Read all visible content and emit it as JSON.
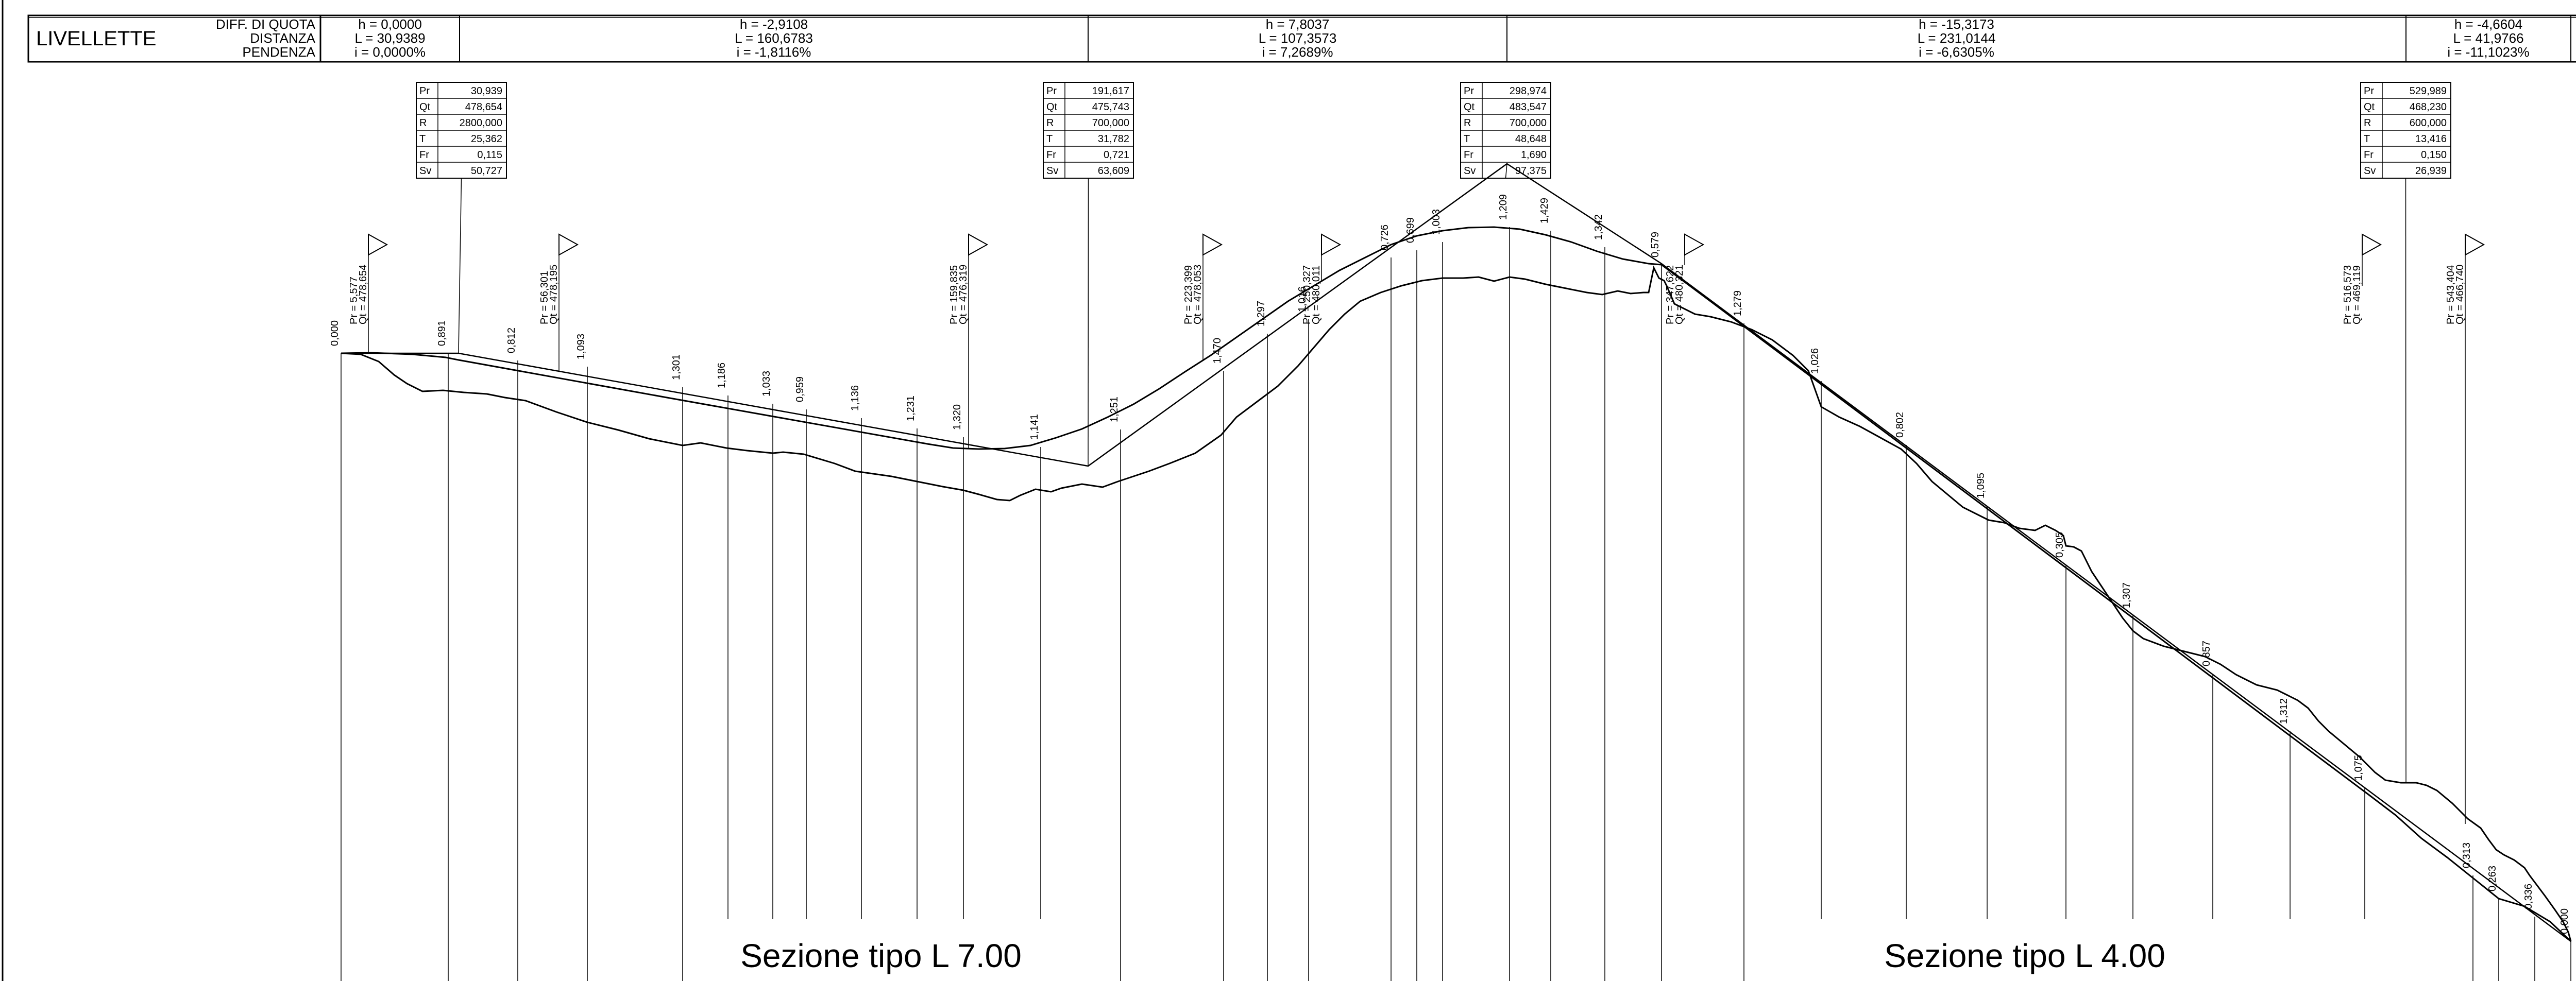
{
  "header": {
    "title": "LIVELLETTE",
    "labels": [
      "DIFF. DI QUOTA",
      "DISTANZA",
      "PENDENZA"
    ],
    "segments": [
      {
        "h": "h = 0,0000",
        "L": "L = 30,9389",
        "i": "i = 0,0000%"
      },
      {
        "h": "h = -2,9108",
        "L": "L = 160,6783",
        "i": "i = -1,8116%"
      },
      {
        "h": "h = 7,8037",
        "L": "L = 107,3573",
        "i": "i = 7,2689%"
      },
      {
        "h": "h = -15,3173",
        "L": "L = 231,0144",
        "i": "i = -6,6305%"
      },
      {
        "h": "h = -4,6604",
        "L": "L = 41,9766",
        "i": "i = -11,1023%"
      }
    ]
  },
  "curve_tables": [
    {
      "rows": [
        [
          "Pr",
          "30,939"
        ],
        [
          "Qt",
          "478,654"
        ],
        [
          "R",
          "2800,000"
        ],
        [
          "T",
          "25,362"
        ],
        [
          "Fr",
          "0,115"
        ],
        [
          "Sv",
          "50,727"
        ]
      ]
    },
    {
      "rows": [
        [
          "Pr",
          "191,617"
        ],
        [
          "Qt",
          "475,743"
        ],
        [
          "R",
          "700,000"
        ],
        [
          "T",
          "31,782"
        ],
        [
          "Fr",
          "0,721"
        ],
        [
          "Sv",
          "63,609"
        ]
      ]
    },
    {
      "rows": [
        [
          "Pr",
          "298,974"
        ],
        [
          "Qt",
          "483,547"
        ],
        [
          "R",
          "700,000"
        ],
        [
          "T",
          "48,648"
        ],
        [
          "Fr",
          "1,690"
        ],
        [
          "Sv",
          "97,375"
        ]
      ]
    },
    {
      "rows": [
        [
          "Pr",
          "529,989"
        ],
        [
          "Qt",
          "468,230"
        ],
        [
          "R",
          "600,000"
        ],
        [
          "T",
          "13,416"
        ],
        [
          "Fr",
          "0,150"
        ],
        [
          "Sv",
          "26,939"
        ]
      ]
    }
  ],
  "tangent_points": [
    {
      "pr": "Pr = 5,577",
      "qt": "Qt = 478,654"
    },
    {
      "pr": "Pr = 56,301",
      "qt": "Qt = 478,195"
    },
    {
      "pr": "Pr = 159,835",
      "qt": "Qt = 476,319"
    },
    {
      "pr": "Pr = 223,399",
      "qt": "Qt = 478,053"
    },
    {
      "pr": "Pr = 250,327",
      "qt": "Qt = 480,011"
    },
    {
      "pr": "Pr = 347,622",
      "qt": "Qt = 480,321"
    },
    {
      "pr": "Pr = 516,573",
      "qt": "Qt = 469,119"
    },
    {
      "pr": "Pr = 543,404",
      "qt": "Qt = 466,740"
    }
  ],
  "station_labels": [
    "0,000",
    "0,891",
    "0,812",
    "1,093",
    "1,301",
    "1,186",
    "1,033",
    "0,959",
    "1,136",
    "1,231",
    "1,320",
    "1,141",
    "1,251",
    "1,470",
    "1,297",
    "1,016",
    "0,726",
    "0,699",
    "1,003",
    "1,209",
    "1,429",
    "1,342",
    "0,579",
    "1,279",
    "1,026",
    "0,802",
    "1,095",
    "0,305",
    "1,307",
    "0,857",
    "1,312",
    "1,075",
    "0,313",
    "0,263",
    "0,336",
    "0,000"
  ],
  "section_labels": [
    "Sezione  tipo  L  7.00",
    "Sezione  tipo  L  4.00"
  ],
  "colors": {
    "ink": "#000000",
    "grade_line": "#e60000",
    "background": "#ffffff"
  },
  "icons": {
    "tangent_marker": "triangle-flag-icon"
  }
}
